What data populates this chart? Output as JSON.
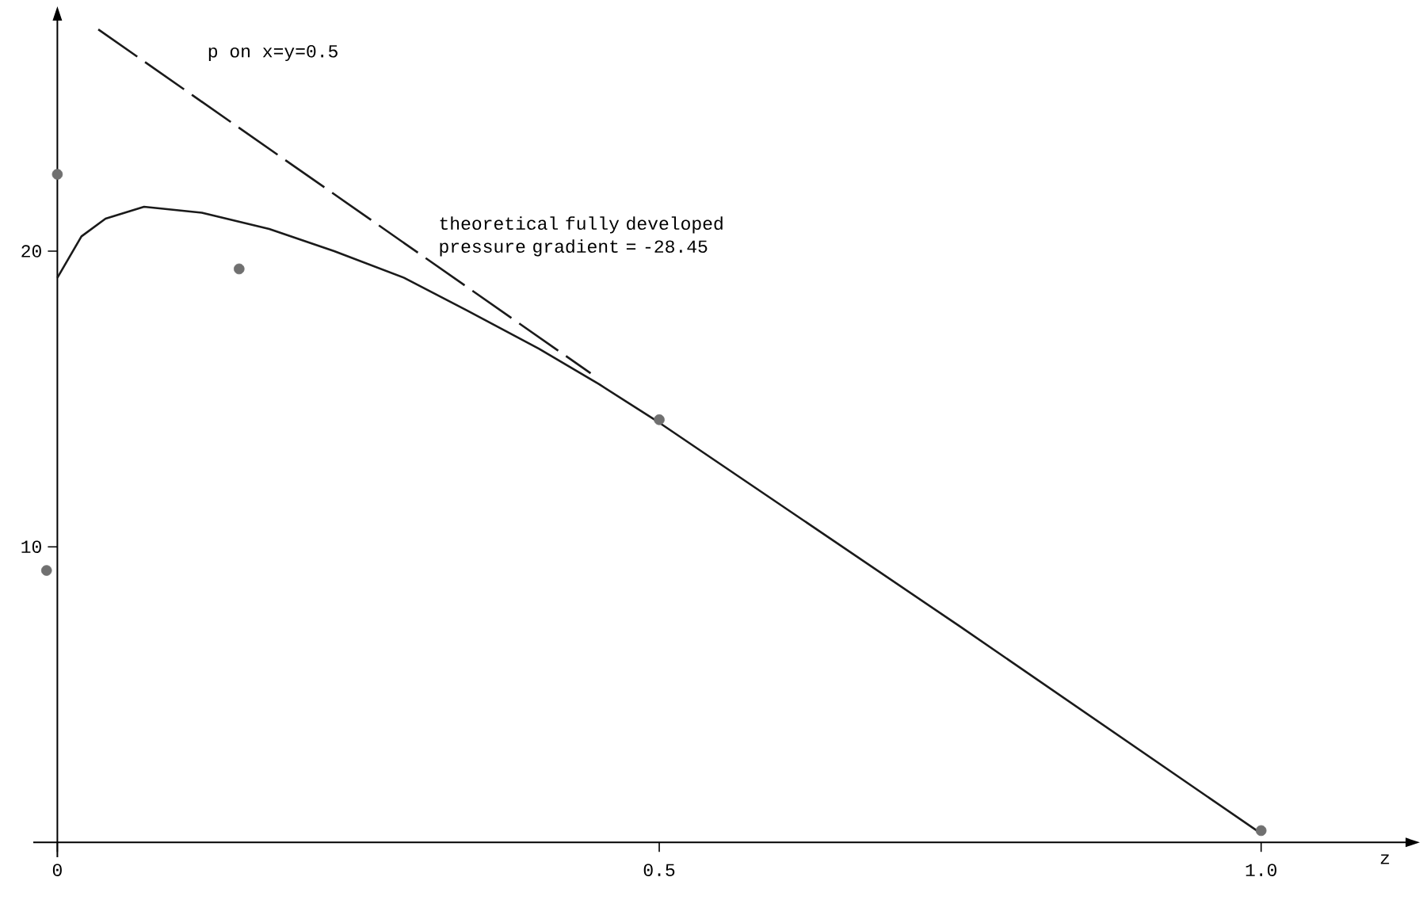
{
  "chart_data": {
    "type": "line",
    "title": "p on x=y=0.5",
    "xlabel": "z",
    "annotations": [
      "theoretical fully developed pressure gradient = -28.45"
    ],
    "xlim": [
      -0.02,
      1.12
    ],
    "ylim": [
      -0.5,
      27.8
    ],
    "xticks": [
      0,
      0.5,
      {
        "value": 1.0,
        "label": "1.0"
      }
    ],
    "yticks": [
      10,
      20
    ],
    "grid": false,
    "series": [
      {
        "color": "#1a1a1a",
        "line_style": "solid",
        "marker": "none",
        "x": [
          0,
          0.02,
          0.04,
          0.072,
          0.12,
          0.176,
          0.23,
          0.288,
          0.34,
          0.4,
          0.45,
          0.5,
          0.75,
          1.0
        ],
        "values": [
          19.1,
          20.5,
          21.1,
          21.5,
          21.3,
          20.75,
          20.0,
          19.1,
          18.0,
          16.7,
          15.5,
          14.2,
          7.3,
          0.3
        ]
      },
      {
        "type": "line",
        "color": "#1a1a1a",
        "line_style": "dashed",
        "marker": "none",
        "x": [
          0.034,
          0.443
        ],
        "values": [
          27.5,
          15.87
        ]
      },
      {
        "type": "scatter",
        "color": "#707070",
        "marker": "circle",
        "x": [
          -0.009,
          0,
          0.151,
          0.5,
          1.0
        ],
        "values": [
          9.2,
          22.6,
          19.4,
          14.3,
          0.4
        ]
      }
    ]
  }
}
